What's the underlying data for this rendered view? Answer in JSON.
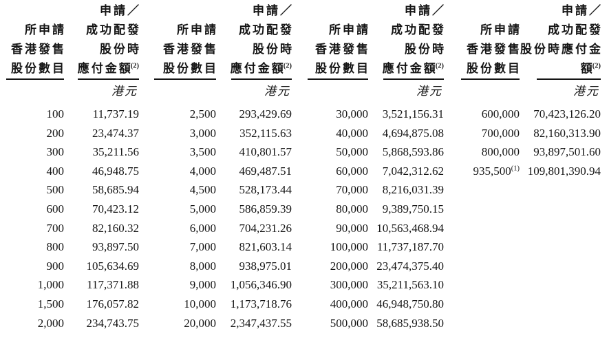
{
  "table": {
    "share_header": [
      "所申請",
      "香港發售",
      "股份數目"
    ],
    "amount_header": [
      "申請／",
      "成功配發",
      "股份時",
      "應付金額"
    ],
    "amount_header_wide": [
      "申請／",
      "成功配發",
      "股份時應付金",
      "額"
    ],
    "amount_note_sup": "(2)",
    "currency": "港元",
    "text_color": "#151515",
    "groups": [
      {
        "rows": [
          {
            "shares": "100",
            "amount": "11,737.19"
          },
          {
            "shares": "200",
            "amount": "23,474.37"
          },
          {
            "shares": "300",
            "amount": "35,211.56"
          },
          {
            "shares": "400",
            "amount": "46,948.75"
          },
          {
            "shares": "500",
            "amount": "58,685.94"
          },
          {
            "shares": "600",
            "amount": "70,423.12"
          },
          {
            "shares": "700",
            "amount": "82,160.32"
          },
          {
            "shares": "800",
            "amount": "93,897.50"
          },
          {
            "shares": "900",
            "amount": "105,634.69"
          },
          {
            "shares": "1,000",
            "amount": "117,371.88"
          },
          {
            "shares": "1,500",
            "amount": "176,057.82"
          },
          {
            "shares": "2,000",
            "amount": "234,743.75"
          }
        ]
      },
      {
        "rows": [
          {
            "shares": "2,500",
            "amount": "293,429.69"
          },
          {
            "shares": "3,000",
            "amount": "352,115.63"
          },
          {
            "shares": "3,500",
            "amount": "410,801.57"
          },
          {
            "shares": "4,000",
            "amount": "469,487.51"
          },
          {
            "shares": "4,500",
            "amount": "528,173.44"
          },
          {
            "shares": "5,000",
            "amount": "586,859.39"
          },
          {
            "shares": "6,000",
            "amount": "704,231.26"
          },
          {
            "shares": "7,000",
            "amount": "821,603.14"
          },
          {
            "shares": "8,000",
            "amount": "938,975.01"
          },
          {
            "shares": "9,000",
            "amount": "1,056,346.90"
          },
          {
            "shares": "10,000",
            "amount": "1,173,718.76"
          },
          {
            "shares": "20,000",
            "amount": "2,347,437.55"
          }
        ]
      },
      {
        "rows": [
          {
            "shares": "30,000",
            "amount": "3,521,156.31"
          },
          {
            "shares": "40,000",
            "amount": "4,694,875.08"
          },
          {
            "shares": "50,000",
            "amount": "5,868,593.86"
          },
          {
            "shares": "60,000",
            "amount": "7,042,312.62"
          },
          {
            "shares": "70,000",
            "amount": "8,216,031.39"
          },
          {
            "shares": "80,000",
            "amount": "9,389,750.15"
          },
          {
            "shares": "90,000",
            "amount": "10,563,468.94"
          },
          {
            "shares": "100,000",
            "amount": "11,737,187.70"
          },
          {
            "shares": "200,000",
            "amount": "23,474,375.40"
          },
          {
            "shares": "300,000",
            "amount": "35,211,563.10"
          },
          {
            "shares": "400,000",
            "amount": "46,948,750.80"
          },
          {
            "shares": "500,000",
            "amount": "58,685,938.50"
          }
        ]
      },
      {
        "rows": [
          {
            "shares": "600,000",
            "amount": "70,423,126.20"
          },
          {
            "shares": "700,000",
            "amount": "82,160,313.90"
          },
          {
            "shares": "800,000",
            "amount": "93,897,501.60"
          },
          {
            "shares": "935,500",
            "share_note": "(1)",
            "amount": "109,801,390.94"
          }
        ]
      }
    ]
  }
}
